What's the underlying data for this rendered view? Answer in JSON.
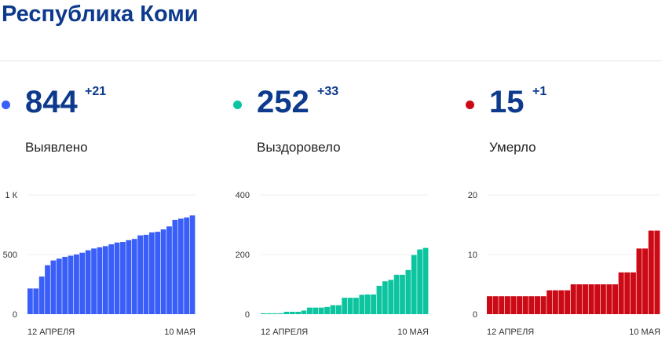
{
  "title": "Республика Коми",
  "stats": [
    {
      "value": "844",
      "delta": "+21",
      "label": "Выявлено",
      "color": "#3a5ef8"
    },
    {
      "value": "252",
      "delta": "+33",
      "label": "Выздоровело",
      "color": "#0cc5a0"
    },
    {
      "value": "15",
      "delta": "+1",
      "label": "Умерло",
      "color": "#cc0a16"
    }
  ],
  "chart_data": [
    {
      "type": "bar",
      "color": "#3a5ef8",
      "ylim": [
        0,
        1000
      ],
      "yticks": [
        0,
        500,
        1000
      ],
      "ytick_labels": [
        "0",
        "500",
        "1 К"
      ],
      "xtick_labels": [
        "12 АПРЕЛЯ",
        "10 МАЯ"
      ],
      "values": [
        215,
        215,
        315,
        410,
        450,
        465,
        480,
        490,
        500,
        515,
        535,
        550,
        560,
        570,
        585,
        600,
        605,
        620,
        630,
        660,
        665,
        685,
        690,
        710,
        735,
        790,
        800,
        810,
        827
      ]
    },
    {
      "type": "bar",
      "color": "#0cc5a0",
      "ylim": [
        0,
        400
      ],
      "yticks": [
        0,
        200,
        400
      ],
      "ytick_labels": [
        "0",
        "200",
        "400"
      ],
      "xtick_labels": [
        "12 АПРЕЛЯ",
        "10 МАЯ"
      ],
      "values": [
        3,
        3,
        3,
        3,
        8,
        8,
        8,
        12,
        22,
        22,
        22,
        24,
        30,
        30,
        55,
        55,
        55,
        65,
        66,
        66,
        95,
        110,
        115,
        132,
        132,
        148,
        198,
        217,
        222
      ]
    },
    {
      "type": "bar",
      "color": "#cc0a16",
      "ylim": [
        0,
        20
      ],
      "yticks": [
        0,
        10,
        20
      ],
      "ytick_labels": [
        "0",
        "10",
        "20"
      ],
      "xtick_labels": [
        "12 АПРЕЛЯ",
        "10 МАЯ"
      ],
      "values": [
        3,
        3,
        3,
        3,
        3,
        3,
        3,
        3,
        3,
        3,
        4,
        4,
        4,
        4,
        5,
        5,
        5,
        5,
        5,
        5,
        5,
        5,
        7,
        7,
        7,
        11,
        11,
        14,
        14
      ]
    }
  ]
}
